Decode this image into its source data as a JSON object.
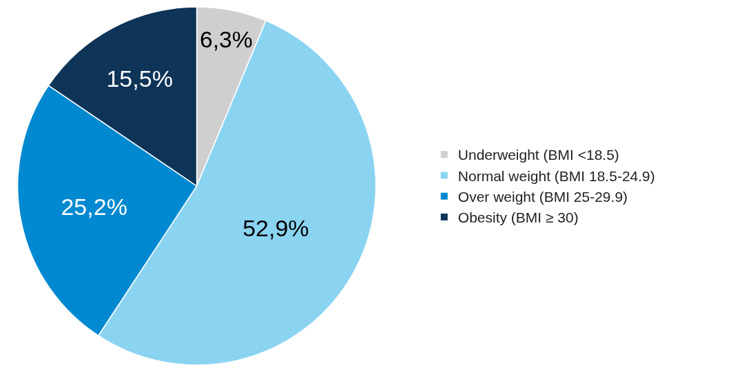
{
  "chart_data": {
    "type": "pie",
    "categories": [
      "Underweight (BMI <18.5)",
      "Normal weight (BMI 18.5-24.9)",
      "Over weight (BMI 25-29.9)",
      "Obesity (BMI ≥ 30)"
    ],
    "values": [
      6.3,
      52.9,
      25.2,
      15.5
    ],
    "value_labels": [
      "6,3%",
      "52,9%",
      "25,2%",
      "15,5%"
    ],
    "colors": [
      "#d0cfd0",
      "#8ad4f2",
      "#0089d0",
      "#0e3458"
    ],
    "legend": "right"
  }
}
